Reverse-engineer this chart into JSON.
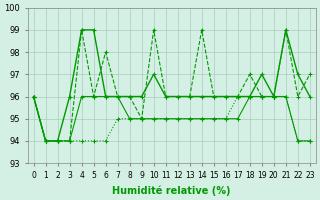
{
  "xlabel": "Humidité relative (%)",
  "background_color": "#d4f0e4",
  "grid_color": "#aaccbb",
  "line_color": "#009900",
  "ylim": [
    93,
    100
  ],
  "xlim": [
    -0.5,
    23.5
  ],
  "yticks": [
    93,
    94,
    95,
    96,
    97,
    98,
    99,
    100
  ],
  "xticks": [
    0,
    1,
    2,
    3,
    4,
    5,
    6,
    7,
    8,
    9,
    10,
    11,
    12,
    13,
    14,
    15,
    16,
    17,
    18,
    19,
    20,
    21,
    22,
    23
  ],
  "series": [
    {
      "y": [
        96,
        94,
        94,
        96,
        99,
        99,
        96,
        96,
        96,
        96,
        97,
        96,
        96,
        96,
        96,
        96,
        96,
        96,
        96,
        97,
        96,
        99,
        97,
        96
      ],
      "style": "-",
      "lw": 1.0
    },
    {
      "y": [
        96,
        94,
        94,
        94,
        99,
        96,
        98,
        96,
        96,
        95,
        99,
        96,
        96,
        96,
        99,
        96,
        96,
        96,
        97,
        96,
        96,
        99,
        96,
        97
      ],
      "style": "--",
      "lw": 0.8
    },
    {
      "y": [
        96,
        94,
        94,
        94,
        96,
        96,
        96,
        96,
        95,
        95,
        95,
        95,
        95,
        95,
        95,
        95,
        95,
        95,
        96,
        96,
        96,
        96,
        94,
        94
      ],
      "style": "-",
      "lw": 0.8
    },
    {
      "y": [
        96,
        94,
        94,
        94,
        94,
        94,
        94,
        95,
        95,
        95,
        95,
        95,
        95,
        95,
        95,
        95,
        95,
        96,
        96,
        96,
        96,
        96,
        94,
        94
      ],
      "style": ":",
      "lw": 0.8
    }
  ],
  "marker": "+"
}
